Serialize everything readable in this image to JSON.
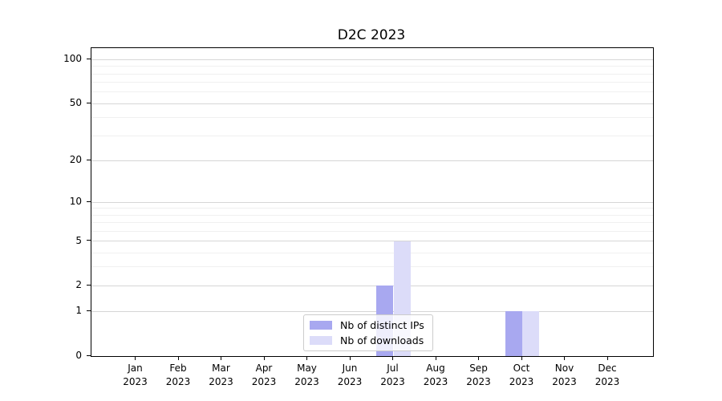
{
  "chart_data": {
    "type": "bar",
    "title": "D2C 2023",
    "categories": [
      "Jan 2023",
      "Feb 2023",
      "Mar 2023",
      "Apr 2023",
      "May 2023",
      "Jun 2023",
      "Jul 2023",
      "Aug 2023",
      "Sep 2023",
      "Oct 2023",
      "Nov 2023",
      "Dec 2023"
    ],
    "series": [
      {
        "name": "Nb of distinct IPs",
        "color": "#a8a8f0",
        "values": [
          0,
          0,
          0,
          0,
          0,
          0,
          2,
          0,
          0,
          1,
          0,
          0
        ]
      },
      {
        "name": "Nb of downloads",
        "color": "#dcdcf9",
        "values": [
          0,
          0,
          0,
          0,
          0,
          0,
          5,
          0,
          0,
          1,
          0,
          0
        ]
      }
    ],
    "xlabel": "",
    "ylabel": "",
    "yscale": "log1p",
    "ylim": [
      0,
      120
    ],
    "yticks": [
      0,
      1,
      2,
      5,
      10,
      20,
      50,
      100
    ],
    "yticks_minor": [
      3,
      4,
      6,
      7,
      8,
      9,
      30,
      40,
      60,
      70,
      80,
      90
    ],
    "grid": true,
    "legend": {
      "position": "lower center",
      "entries": [
        "Nb of distinct IPs",
        "Nb of downloads"
      ]
    }
  },
  "colors": {
    "background": "#ffffff",
    "spine": "#000000",
    "grid_major": "#d6d6d6",
    "grid_minor": "#f0f0f0",
    "text": "#000000",
    "legend_border": "#cccccc",
    "legend_background": "rgba(255,255,255,0.8)"
  }
}
